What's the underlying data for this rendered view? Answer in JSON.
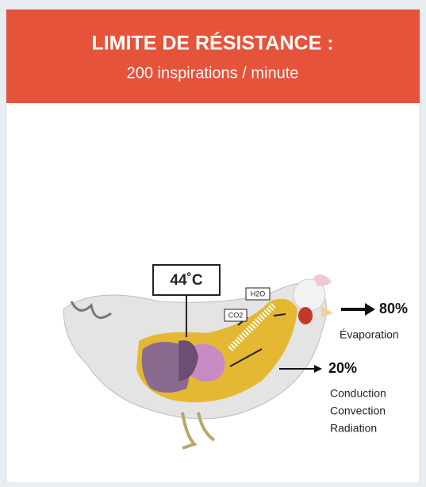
{
  "header": {
    "title": "LIMITE DE RÉSISTANCE :",
    "subtitle": "200 inspirations / minute"
  },
  "diagram": {
    "temperature": "44˚C",
    "h2o": "H2O",
    "co2": "CO2",
    "outputs": [
      {
        "percent": "80%",
        "labels": [
          "Évaporation"
        ]
      },
      {
        "percent": "20%",
        "labels": [
          "Conduction",
          "Convection",
          "Radiation"
        ]
      }
    ]
  }
}
